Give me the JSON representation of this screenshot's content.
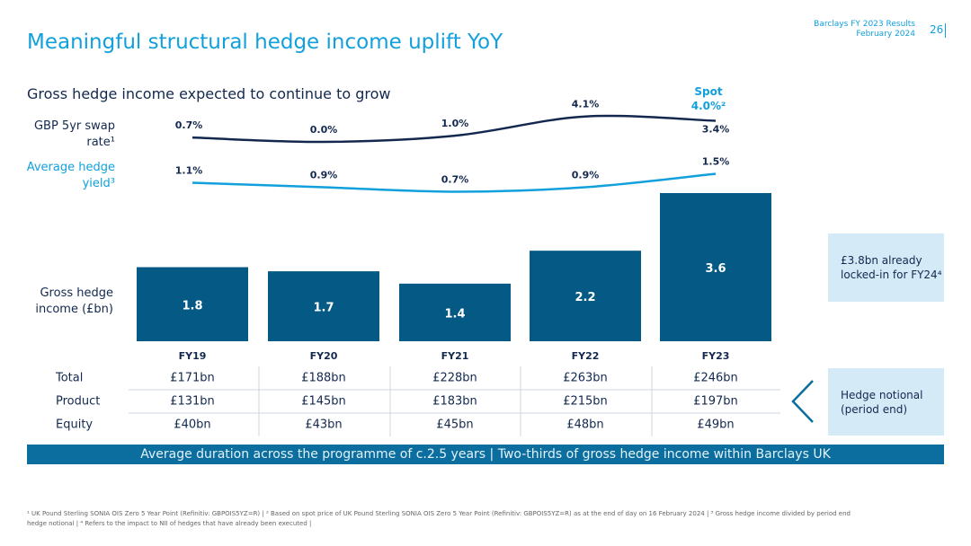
{
  "header": {
    "title": "Meaningful structural hedge income uplift YoY",
    "report": "Barclays FY 2023 Results",
    "date": "February 2024",
    "page": "26"
  },
  "chart_data": {
    "type": "bar",
    "subtitle": "Gross hedge income expected to continue to grow",
    "categories": [
      "FY19",
      "FY20",
      "FY21",
      "FY22",
      "FY23"
    ],
    "bar_label": "Gross hedge income (£bn)",
    "values": [
      1.8,
      1.7,
      1.4,
      2.2,
      3.6
    ],
    "color": "#045a84",
    "ylim": [
      0,
      3.6
    ],
    "series": [
      {
        "name": "GBP 5yr swap rate¹",
        "color": "#13284f",
        "values": [
          0.7,
          0.0,
          1.0,
          4.1,
          3.4
        ],
        "value_labels": [
          "0.7%",
          "0.0%",
          "1.0%",
          "4.1%",
          "3.4%"
        ]
      },
      {
        "name": "Average hedge yield³",
        "color": "#12a0dc",
        "values": [
          1.1,
          0.9,
          0.7,
          0.9,
          1.5
        ],
        "value_labels": [
          "1.1%",
          "0.9%",
          "0.7%",
          "0.9%",
          "1.5%"
        ]
      }
    ],
    "spot": {
      "label": "Spot",
      "value": 4.0,
      "value_label": "4.0%²"
    }
  },
  "table": {
    "rows": [
      [
        "Total",
        "£171bn",
        "£188bn",
        "£228bn",
        "£263bn",
        "£246bn"
      ],
      [
        "Product",
        "£131bn",
        "£145bn",
        "£183bn",
        "£215bn",
        "£197bn"
      ],
      [
        "Equity",
        "£40bn",
        "£43bn",
        "£45bn",
        "£48bn",
        "£49bn"
      ]
    ]
  },
  "callouts": [
    "£3.8bn already locked-in for FY24⁴",
    "Hedge notional (period end)"
  ],
  "banner": "Average duration across the programme of c.2.5 years | Two-thirds of gross hedge income within Barclays UK",
  "footnotes": [
    "¹ UK Pound Sterling SONIA OIS Zero 5 Year Point (Refinitiv: GBPOIS5YZ=R) | ² Based on spot price of UK Pound Sterling SONIA OIS Zero 5 Year Point (Refinitiv: GBPOIS5YZ=R) as at the end of day on 16 February 2024 | ³ Gross hedge income divided by period end",
    "hedge notional | ⁴ Refers to the impact to NII of hedges that have already been executed |"
  ]
}
